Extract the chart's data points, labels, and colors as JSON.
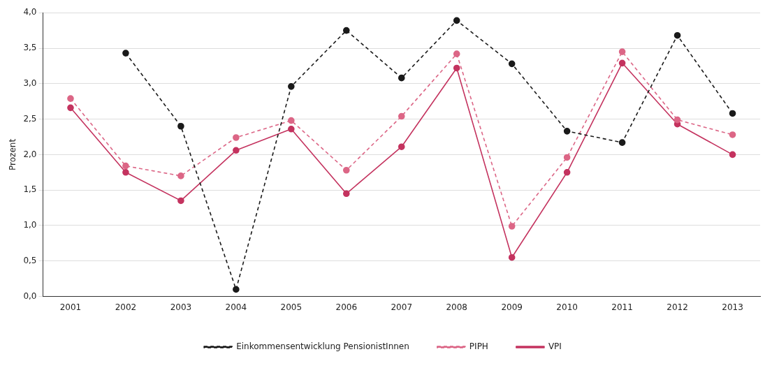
{
  "chart_data": {
    "type": "line",
    "ylabel": "Prozent",
    "categories": [
      "2001",
      "2002",
      "2003",
      "2004",
      "2005",
      "2006",
      "2007",
      "2008",
      "2009",
      "2010",
      "2011",
      "2012",
      "2013"
    ],
    "series": [
      {
        "name": "Einkommensentwicklung PensionistInnen",
        "color": "#1a1a1a",
        "line_style": "dashed",
        "values": [
          null,
          3.43,
          2.4,
          0.1,
          2.96,
          3.75,
          3.08,
          3.89,
          3.28,
          2.33,
          2.17,
          3.68,
          2.58
        ]
      },
      {
        "name": "PIPH",
        "color": "#dc6686",
        "line_style": "dashed",
        "values": [
          2.79,
          1.84,
          1.7,
          2.24,
          2.48,
          1.78,
          2.54,
          3.42,
          0.99,
          1.96,
          3.45,
          2.49,
          2.28
        ]
      },
      {
        "name": "VPI",
        "color": "#c4335f",
        "line_style": "solid",
        "values": [
          2.66,
          1.75,
          1.35,
          2.06,
          2.36,
          1.45,
          2.11,
          3.22,
          0.55,
          1.75,
          3.29,
          2.43,
          2.0
        ]
      }
    ],
    "ylim": [
      0,
      4
    ],
    "yticks": [
      {
        "value": 0,
        "label": "0,0"
      },
      {
        "value": 0.5,
        "label": "0,5"
      },
      {
        "value": 1,
        "label": "1,0"
      },
      {
        "value": 1.5,
        "label": "1,5"
      },
      {
        "value": 2,
        "label": "2,0"
      },
      {
        "value": 2.5,
        "label": "2,5"
      },
      {
        "value": 3,
        "label": "3,0"
      },
      {
        "value": 3.5,
        "label": "3,5"
      },
      {
        "value": 4,
        "label": "4,0"
      }
    ],
    "grid": "y",
    "legend": "bottom",
    "marker": "circle"
  }
}
